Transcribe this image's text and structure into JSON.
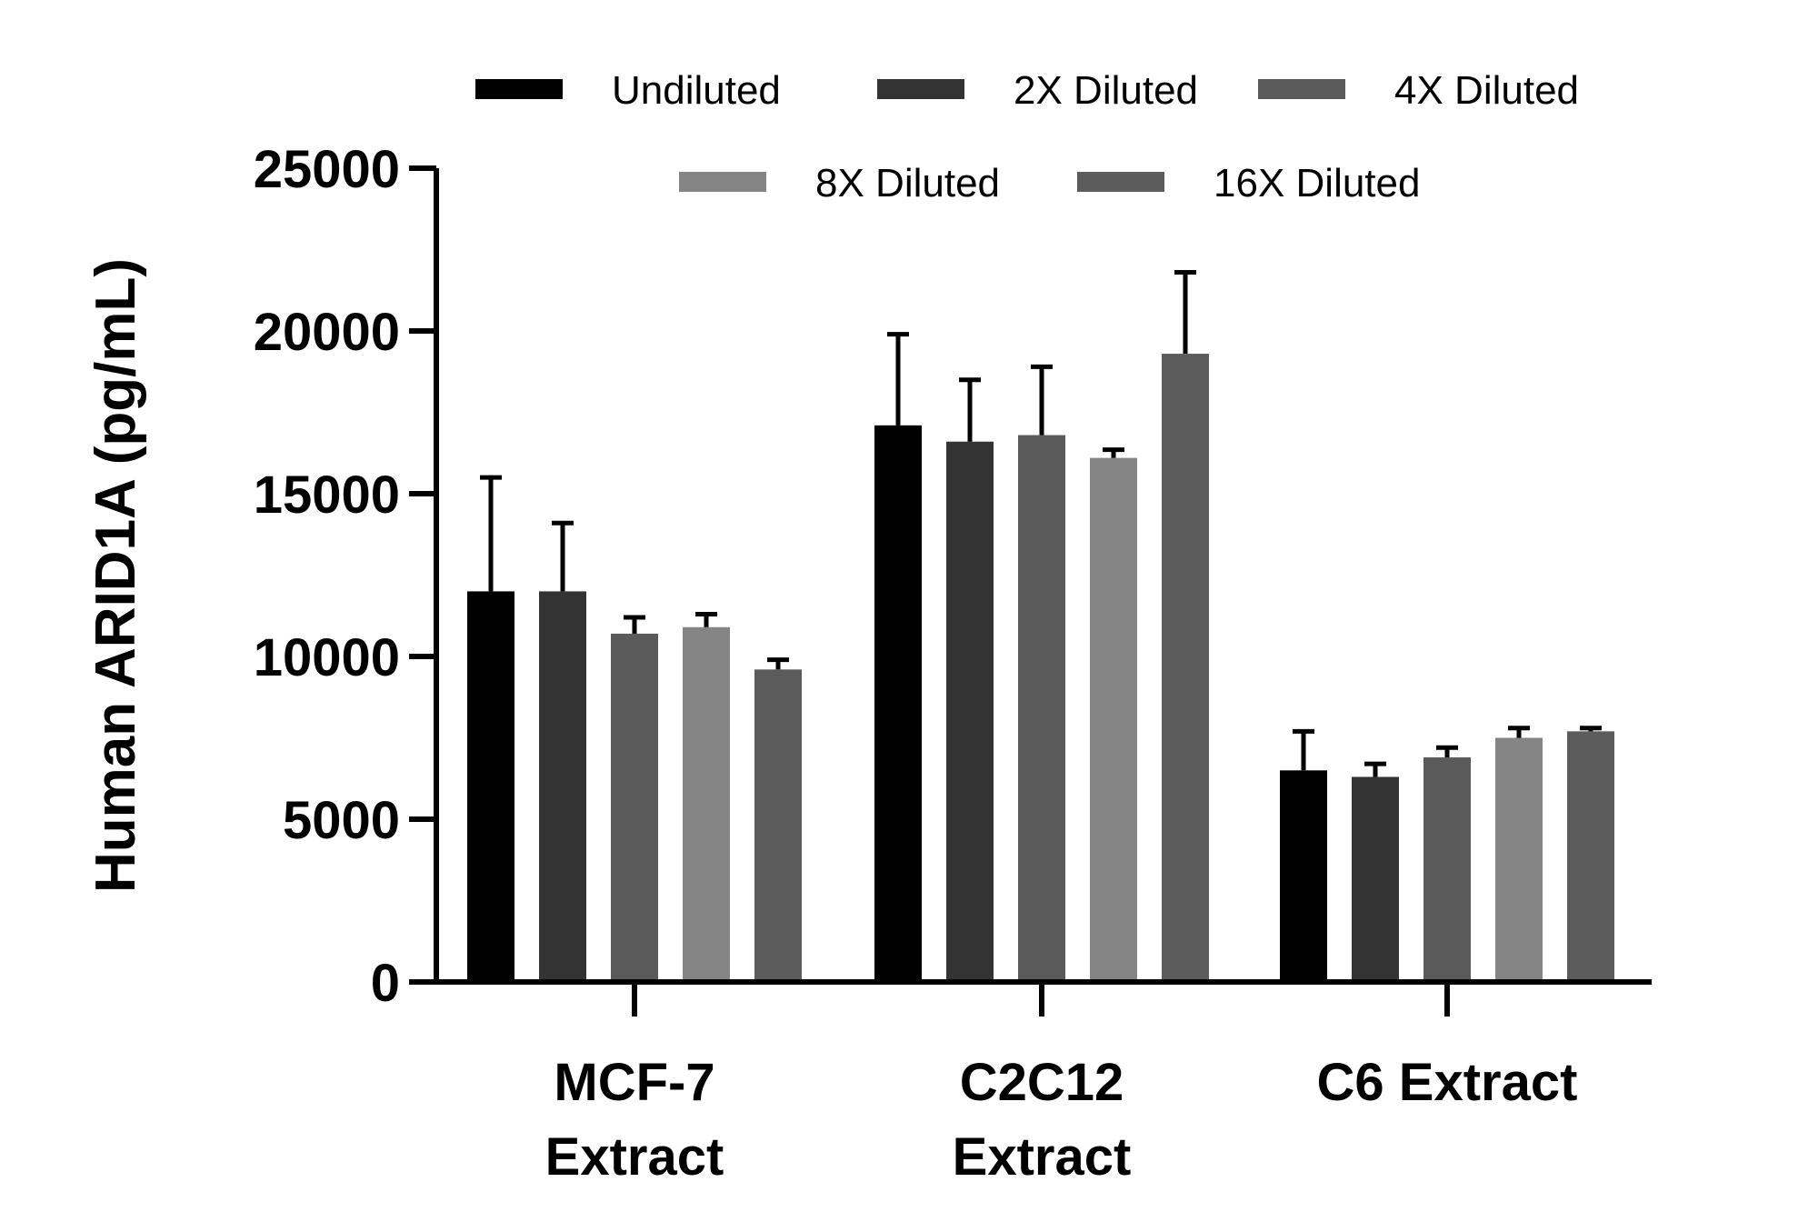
{
  "chart_data": {
    "type": "bar",
    "title": "",
    "xlabel": "",
    "ylabel": "Human ARID1A (pg/mL)",
    "ylim": [
      0,
      25000
    ],
    "yticks": [
      0,
      5000,
      10000,
      15000,
      20000,
      25000
    ],
    "grid": false,
    "legend_position": "top",
    "categories": [
      [
        "MCF-7",
        "Extract"
      ],
      [
        "C2C12",
        "Extract"
      ],
      [
        "C6 Extract"
      ]
    ],
    "series": [
      {
        "name": "Undiluted",
        "color": "#000000",
        "values": [
          12000,
          17100,
          6500
        ],
        "errors": [
          3500,
          2800,
          1200
        ]
      },
      {
        "name": "2X Diluted",
        "color": "#333333",
        "values": [
          12000,
          16600,
          6300
        ],
        "errors": [
          2100,
          1900,
          400
        ]
      },
      {
        "name": "4X Diluted",
        "color": "#5a5a5a",
        "values": [
          10700,
          16800,
          6900
        ],
        "errors": [
          500,
          2100,
          300
        ]
      },
      {
        "name": "8X Diluted",
        "color": "#858585",
        "values": [
          10900,
          16100,
          7500
        ],
        "errors": [
          400,
          250,
          300
        ]
      },
      {
        "name": "16X Diluted",
        "color": "#5c5c5c",
        "values": [
          9600,
          19300,
          7700
        ],
        "errors": [
          300,
          2500,
          100
        ]
      }
    ]
  }
}
